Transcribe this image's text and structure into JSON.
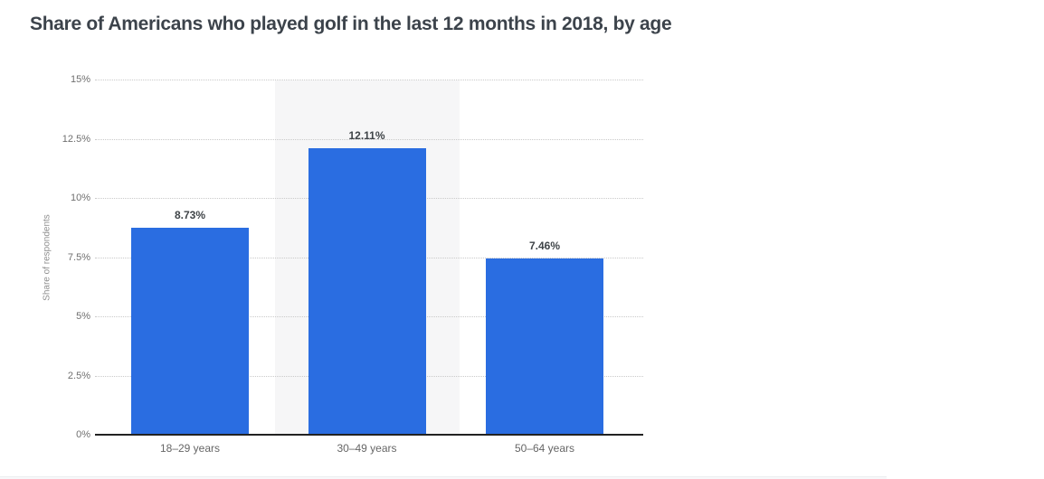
{
  "chart_data": {
    "type": "bar",
    "title": "Share of Americans who played golf in the last 12 months in 2018, by age",
    "xlabel": "",
    "ylabel": "Share of respondents",
    "categories": [
      "18–29 years",
      "30–49 years",
      "50–64 years"
    ],
    "values": [
      8.73,
      12.11,
      7.46
    ],
    "value_labels": [
      "8.73%",
      "12.11%",
      "7.46%"
    ],
    "ylim": [
      0,
      15
    ],
    "yticks": [
      0,
      2.5,
      5,
      7.5,
      10,
      12.5,
      15
    ],
    "ytick_labels": [
      "0%",
      "2.5%",
      "5%",
      "7.5%",
      "10%",
      "12.5%",
      "15%"
    ],
    "grid": "horizontal-dotted",
    "legend": "none",
    "highlighted_category_index": 1,
    "colors": {
      "bar": "#2a6de1",
      "title": "#3c434b",
      "value_label": "#3f4448",
      "tick_label": "#6f6f6f",
      "xtick_label": "#666666",
      "y_axis_title": "#8f8f8f",
      "gridline": "#c9c9c9",
      "axis_line": "#222222",
      "highlight_band": "#f6f6f7"
    }
  }
}
